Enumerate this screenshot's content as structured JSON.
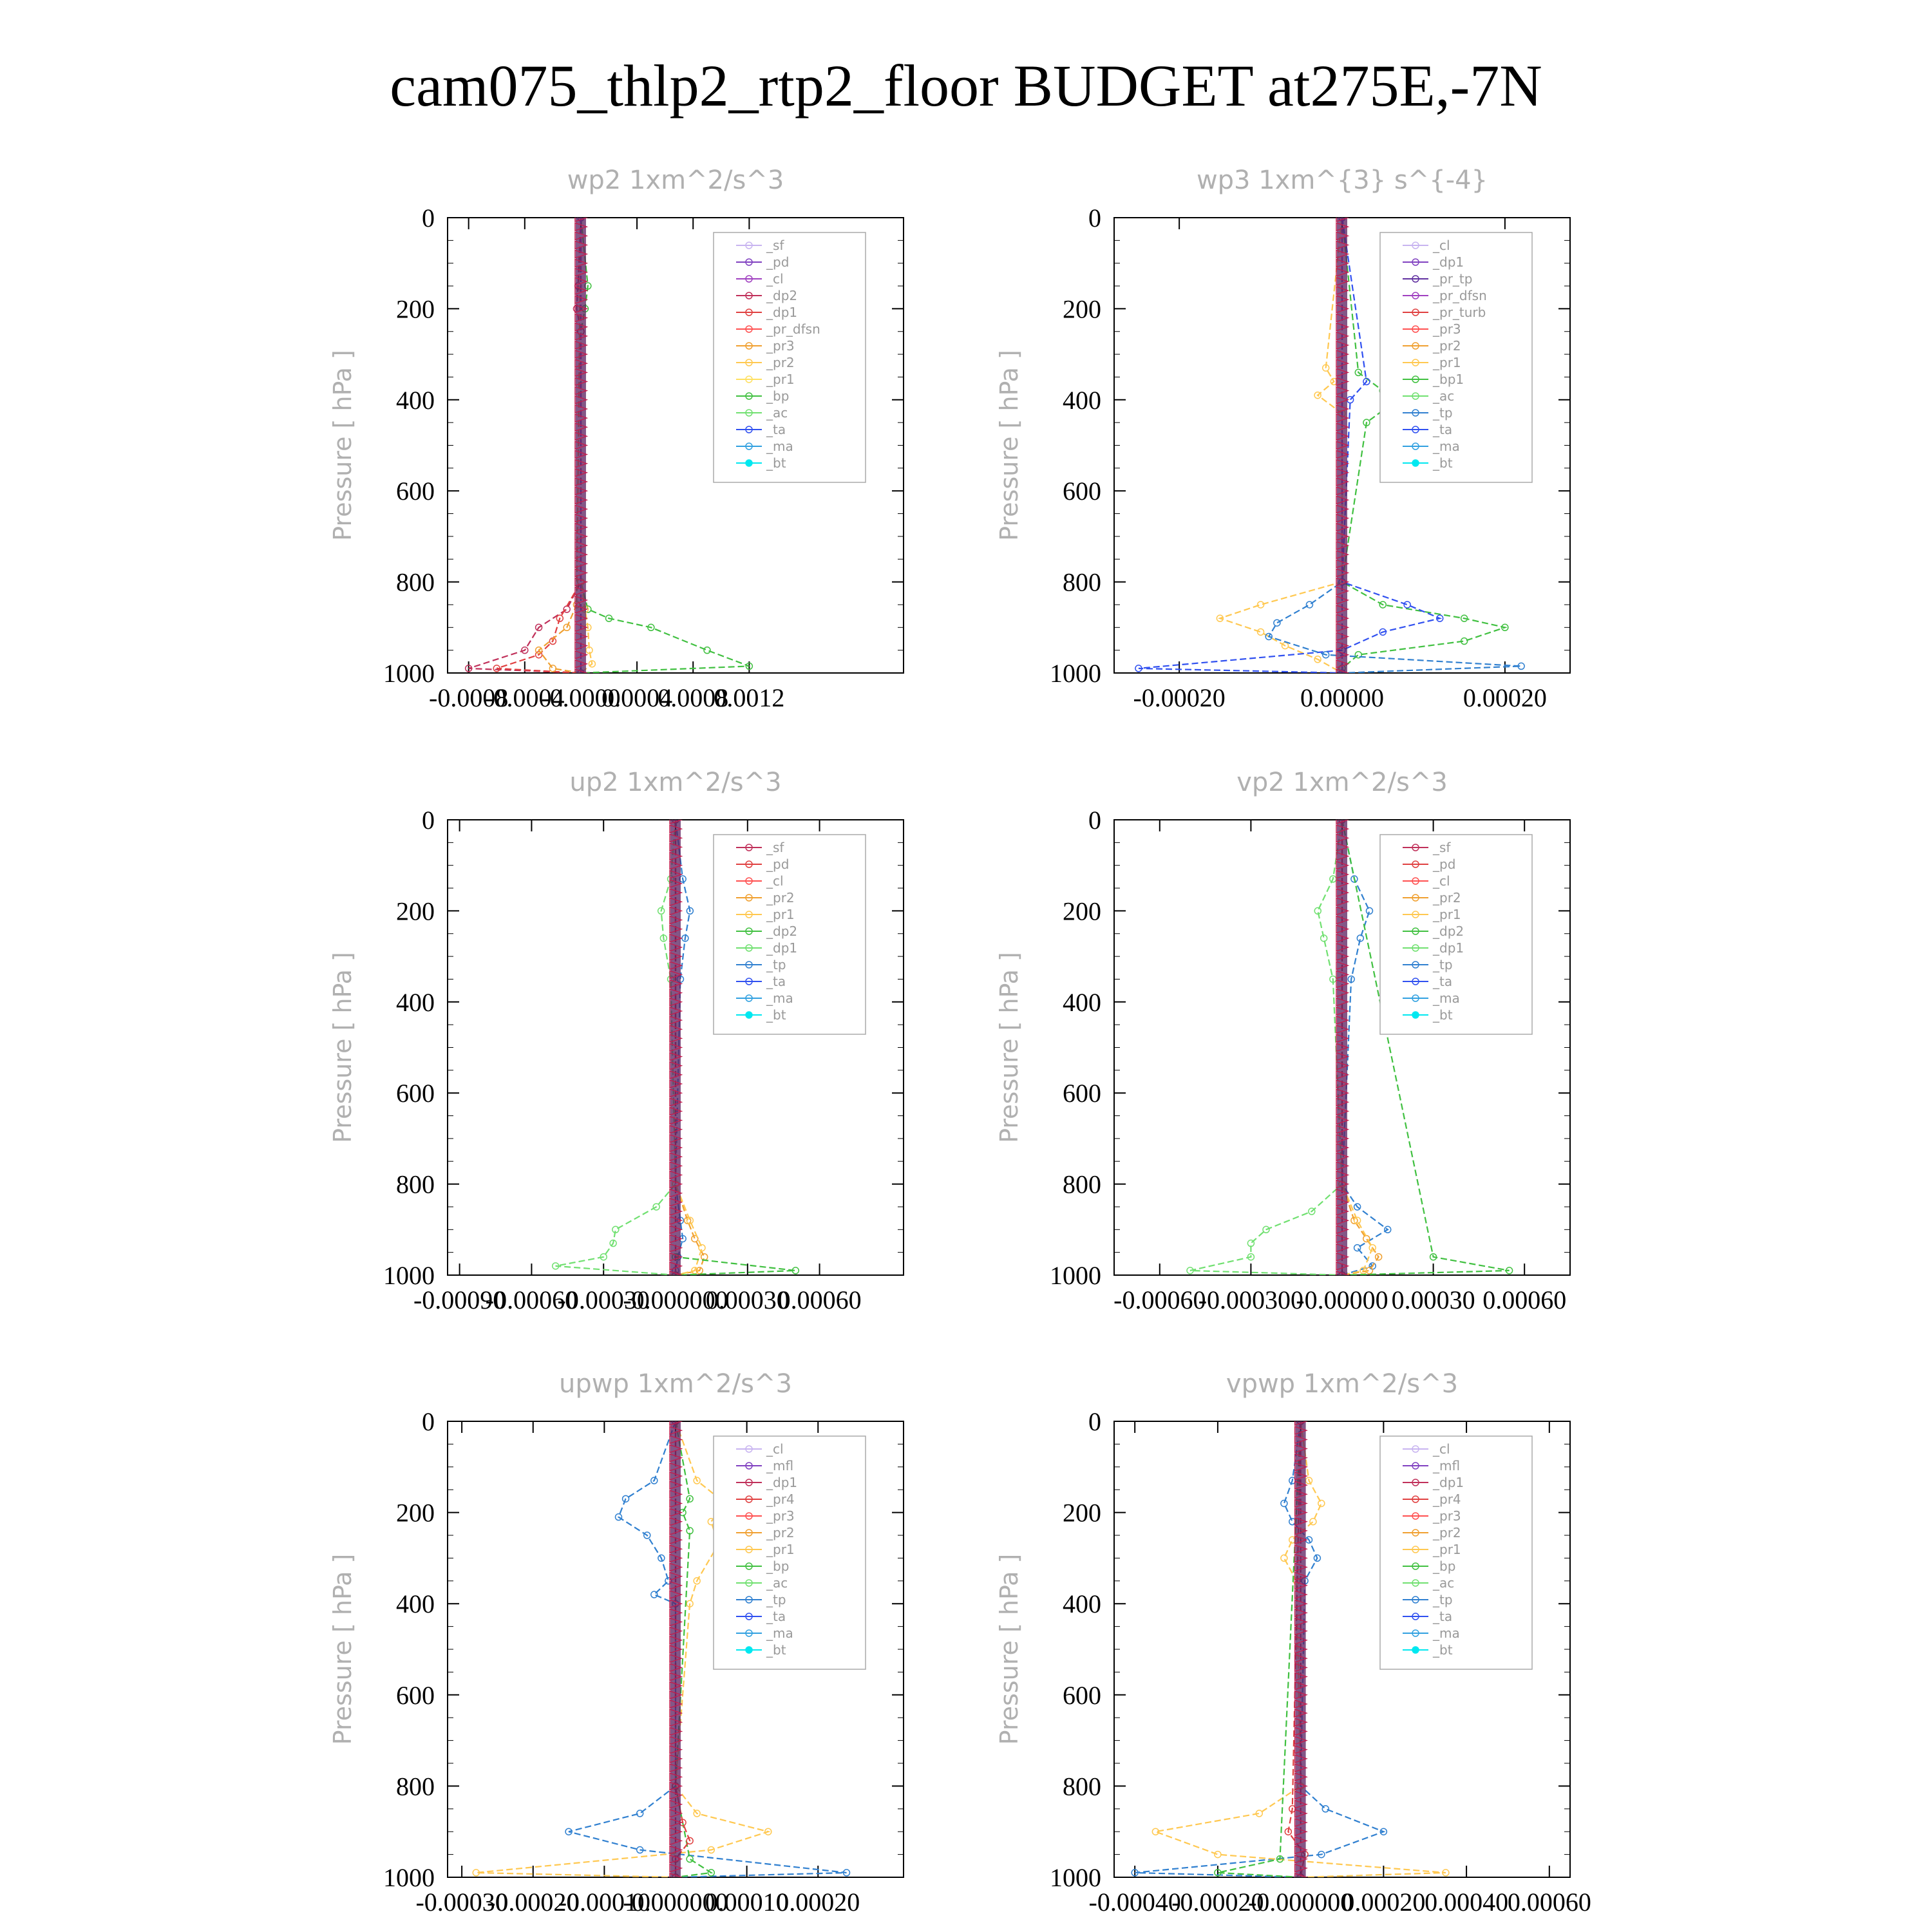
{
  "title": "cam075_thlp2_rtp2_floor  BUDGET at275E,-7N",
  "chart_data": [
    {
      "type": "line",
      "title": "wp2   1xm^2/s^3",
      "ylabel": "Pressure  [ hPa ]",
      "yticks": [
        "0",
        "200",
        "400",
        "600",
        "800",
        "1000"
      ],
      "xtick_labels": [
        "-0.0008",
        "-0.0004",
        "-0.0000",
        "0.0004",
        "0.0008",
        "0.0012"
      ],
      "xtick_values": [
        -0.0008,
        -0.0004,
        0,
        0.0004,
        0.0008,
        0.0012
      ],
      "xlim": [
        -0.00095,
        0.0023
      ],
      "ylim": [
        1000,
        0
      ],
      "legend": [
        "_sf",
        "_pd",
        "_cl",
        "_dp2",
        "_dp1",
        "_pr_dfsn",
        "_pr3",
        "_pr2",
        "_pr1",
        "_bp",
        "_ac",
        "_ta",
        "_ma",
        "_bt"
      ],
      "legend_colors": [
        "#c8b4f0",
        "#8040c0",
        "#a040c0",
        "#c0305a",
        "#e04040",
        "#ff5050",
        "#f0a030",
        "#ffc850",
        "#ffe060",
        "#40c040",
        "#70e070",
        "#3050f0",
        "#30a0e0",
        "#00e8f0"
      ],
      "series": [
        {
          "name": "_pr1",
          "color": "#40c040",
          "y": [
            0,
            150,
            200,
            250,
            800,
            860,
            880,
            900,
            950,
            985,
            1000
          ],
          "x": [
            0,
            5e-05,
            3e-05,
            0,
            0,
            5e-05,
            0.0002,
            0.0005,
            0.0009,
            0.0012,
            0
          ]
        },
        {
          "name": "_dp2",
          "color": "#c0305a",
          "y": [
            0,
            150,
            200,
            250,
            800,
            860,
            900,
            950,
            990,
            1000
          ],
          "x": [
            0,
            -2e-05,
            -3e-05,
            0,
            0,
            -0.0001,
            -0.0003,
            -0.0004,
            -0.0008,
            0
          ]
        },
        {
          "name": "_dp1",
          "color": "#e04040",
          "y": [
            0,
            800,
            880,
            930,
            960,
            990,
            1000
          ],
          "x": [
            0,
            0,
            -0.00015,
            -0.0002,
            -0.0003,
            -0.0006,
            0
          ]
        },
        {
          "name": "_pr2",
          "color": "#ffc850",
          "y": [
            0,
            800,
            860,
            900,
            950,
            980,
            1000
          ],
          "x": [
            0,
            0,
            3e-05,
            5e-05,
            6e-05,
            8e-05,
            0
          ]
        },
        {
          "name": "_pr3",
          "color": "#f0a030",
          "y": [
            0,
            850,
            900,
            950,
            990,
            1000
          ],
          "x": [
            0,
            -3e-05,
            -0.0001,
            -0.0003,
            -0.0002,
            0
          ]
        },
        {
          "name": "_pd",
          "color": "#8040c0",
          "y": [
            0,
            1000
          ],
          "x": [
            0,
            0
          ]
        }
      ]
    },
    {
      "type": "line",
      "title": "wp3   1xm^{3} s^{-4}",
      "ylabel": "Pressure  [ hPa ]",
      "yticks": [
        "0",
        "200",
        "400",
        "600",
        "800",
        "1000"
      ],
      "xtick_labels": [
        "-0.00020",
        "0.00000",
        "0.00020"
      ],
      "xtick_values": [
        -0.0002,
        0,
        0.0002
      ],
      "xlim": [
        -0.00028,
        0.00028
      ],
      "ylim": [
        1000,
        0
      ],
      "legend": [
        "_cl",
        "_dp1",
        "_pr_tp",
        "_pr_dfsn",
        "_pr_turb",
        "_pr3",
        "_pr2",
        "_pr1",
        "_bp1",
        "_ac",
        "_tp",
        "_ta",
        "_ma",
        "_bt"
      ],
      "legend_colors": [
        "#c8b4f0",
        "#8040c0",
        "#6030a0",
        "#a040c0",
        "#e04040",
        "#ff5050",
        "#f0a030",
        "#ffc850",
        "#40c040",
        "#70e070",
        "#3080d0",
        "#3050f0",
        "#30a0e0",
        "#00e8f0"
      ],
      "series": [
        {
          "name": "_bp1",
          "color": "#40c040",
          "y": [
            0,
            340,
            380,
            410,
            450,
            800,
            850,
            880,
            900,
            930,
            960,
            990,
            1000
          ],
          "x": [
            0,
            2e-05,
            5e-05,
            6e-05,
            3e-05,
            0,
            5e-05,
            0.00015,
            0.0002,
            0.00015,
            2e-05,
            0,
            0
          ]
        },
        {
          "name": "_pr1",
          "color": "#ffc850",
          "y": [
            0,
            330,
            360,
            390,
            430,
            800,
            850,
            880,
            910,
            940,
            970,
            1000
          ],
          "x": [
            0,
            -2e-05,
            -1e-05,
            -3e-05,
            0,
            0,
            -0.0001,
            -0.00015,
            -0.0001,
            -7e-05,
            -3e-05,
            0
          ]
        },
        {
          "name": "_ta",
          "color": "#3050f0",
          "y": [
            0,
            360,
            400,
            800,
            850,
            880,
            910,
            950,
            990,
            1000
          ],
          "x": [
            0,
            3e-05,
            1e-05,
            0,
            8e-05,
            0.00012,
            5e-05,
            0,
            -0.00025,
            0
          ]
        },
        {
          "name": "_tp",
          "color": "#3080d0",
          "y": [
            0,
            800,
            850,
            890,
            920,
            960,
            985,
            1000
          ],
          "x": [
            0,
            0,
            -4e-05,
            -8e-05,
            -9e-05,
            -2e-05,
            0.00022,
            0
          ]
        },
        {
          "name": "_dp1",
          "color": "#8040c0",
          "y": [
            0,
            1000
          ],
          "x": [
            0,
            0
          ]
        }
      ]
    },
    {
      "type": "line",
      "title": "up2   1xm^2/s^3",
      "ylabel": "Pressure  [ hPa ]",
      "yticks": [
        "0",
        "200",
        "400",
        "600",
        "800",
        "1000"
      ],
      "xtick_labels": [
        "-0.00090",
        "-0.00060",
        "-0.00030",
        "-0.000000",
        "0.00030",
        "0.00060"
      ],
      "xtick_values": [
        -0.0009,
        -0.0006,
        -0.0003,
        0,
        0.0003,
        0.0006
      ],
      "xlim": [
        -0.00095,
        0.00095
      ],
      "ylim": [
        1000,
        0
      ],
      "legend": [
        "_sf",
        "_pd",
        "_cl",
        "_pr2",
        "_pr1",
        "_dp2",
        "_dp1",
        "_tp",
        "_ta",
        "_ma",
        "_bt"
      ],
      "legend_colors": [
        "#c0305a",
        "#e04040",
        "#ff5050",
        "#f0a030",
        "#ffc850",
        "#40c040",
        "#70e070",
        "#3080d0",
        "#3050f0",
        "#30a0e0",
        "#00e8f0"
      ],
      "series": [
        {
          "name": "_dp1",
          "color": "#70e070",
          "y": [
            0,
            130,
            200,
            260,
            350,
            800,
            850,
            900,
            930,
            960,
            980,
            1000
          ],
          "x": [
            0,
            -2e-05,
            -6e-05,
            -5e-05,
            -2e-05,
            0,
            -8e-05,
            -0.00025,
            -0.00026,
            -0.0003,
            -0.0005,
            0
          ]
        },
        {
          "name": "_tp",
          "color": "#3080d0",
          "y": [
            0,
            130,
            200,
            260,
            350,
            800,
            880,
            920,
            960,
            990,
            1000
          ],
          "x": [
            0,
            3e-05,
            6e-05,
            4e-05,
            2e-05,
            0,
            2e-05,
            3e-05,
            1e-05,
            0,
            0
          ]
        },
        {
          "name": "_pr2",
          "color": "#f0a030",
          "y": [
            0,
            800,
            880,
            920,
            960,
            990,
            1000
          ],
          "x": [
            0,
            0,
            5e-05,
            8e-05,
            0.00012,
            0.0001,
            0
          ]
        },
        {
          "name": "_pr1",
          "color": "#ffc850",
          "y": [
            0,
            800,
            880,
            940,
            990,
            1000
          ],
          "x": [
            0,
            0,
            6e-05,
            0.00011,
            8e-05,
            0
          ]
        },
        {
          "name": "_dp2",
          "color": "#40c040",
          "y": [
            0,
            960,
            990,
            1000
          ],
          "x": [
            0,
            0,
            0.0005,
            0
          ]
        },
        {
          "name": "_sf",
          "color": "#c0305a",
          "y": [
            0,
            1000
          ],
          "x": [
            0,
            0
          ]
        }
      ]
    },
    {
      "type": "line",
      "title": "vp2   1xm^2/s^3",
      "ylabel": "Pressure  [ hPa ]",
      "yticks": [
        "0",
        "200",
        "400",
        "600",
        "800",
        "1000"
      ],
      "xtick_labels": [
        "-0.00060",
        "-0.000300",
        "-0.00000",
        "0.00030",
        "0.00060"
      ],
      "xtick_values": [
        -0.0006,
        -0.0003,
        0,
        0.0003,
        0.0006
      ],
      "xlim": [
        -0.00075,
        0.00075
      ],
      "ylim": [
        1000,
        0
      ],
      "legend": [
        "_sf",
        "_pd",
        "_cl",
        "_pr2",
        "_pr1",
        "_dp2",
        "_dp1",
        "_tp",
        "_ta",
        "_ma",
        "_bt"
      ],
      "legend_colors": [
        "#c0305a",
        "#e04040",
        "#ff5050",
        "#f0a030",
        "#ffc850",
        "#40c040",
        "#70e070",
        "#3080d0",
        "#3050f0",
        "#30a0e0",
        "#00e8f0"
      ],
      "series": [
        {
          "name": "_dp1",
          "color": "#70e070",
          "y": [
            0,
            130,
            200,
            260,
            350,
            800,
            860,
            900,
            930,
            960,
            990,
            1000
          ],
          "x": [
            0,
            -3e-05,
            -8e-05,
            -6e-05,
            -3e-05,
            0,
            -0.0001,
            -0.00025,
            -0.0003,
            -0.0003,
            -0.0005,
            0
          ]
        },
        {
          "name": "_tp",
          "color": "#3080d0",
          "y": [
            0,
            130,
            200,
            260,
            350,
            800,
            850,
            900,
            940,
            980,
            1000
          ],
          "x": [
            0,
            4e-05,
            9e-05,
            6e-05,
            3e-05,
            0,
            5e-05,
            0.00015,
            5e-05,
            0.0001,
            0
          ]
        },
        {
          "name": "_pr2",
          "color": "#f0a030",
          "y": [
            0,
            800,
            880,
            920,
            960,
            990,
            1000
          ],
          "x": [
            0,
            0,
            4e-05,
            8e-05,
            0.00012,
            9e-05,
            0
          ]
        },
        {
          "name": "_pr1",
          "color": "#ffc850",
          "y": [
            0,
            800,
            880,
            940,
            990,
            1000
          ],
          "x": [
            0,
            0,
            5e-05,
            0.0001,
            7e-05,
            0
          ]
        },
        {
          "name": "_dp2",
          "color": "#40c040",
          "y": [
            0,
            960,
            990,
            1000
          ],
          "x": [
            0,
            0.0003,
            0.00055,
            0
          ]
        },
        {
          "name": "_sf",
          "color": "#c0305a",
          "y": [
            0,
            1000
          ],
          "x": [
            0,
            0
          ]
        }
      ]
    },
    {
      "type": "line",
      "title": "upwp   1xm^2/s^3",
      "ylabel": "Pressure  [ hPa ]",
      "yticks": [
        "0",
        "200",
        "400",
        "600",
        "800",
        "1000"
      ],
      "xtick_labels": [
        "-0.00030",
        "-0.00020",
        "-0.00010",
        "-0.000000",
        "0.00010",
        "0.00020"
      ],
      "xtick_values": [
        -0.0003,
        -0.0002,
        -0.0001,
        0,
        0.0001,
        0.0002
      ],
      "xlim": [
        -0.00032,
        0.00032
      ],
      "ylim": [
        1000,
        0
      ],
      "legend": [
        "_cl",
        "_mfl",
        "_dp1",
        "_pr4",
        "_pr3",
        "_pr2",
        "_pr1",
        "_bp",
        "_ac",
        "_tp",
        "_ta",
        "_ma",
        "_bt"
      ],
      "legend_colors": [
        "#c8b4f0",
        "#8040c0",
        "#c0305a",
        "#e04040",
        "#ff5050",
        "#f0a030",
        "#ffc850",
        "#40c040",
        "#70e070",
        "#3080d0",
        "#3050f0",
        "#30a0e0",
        "#00e8f0"
      ],
      "series": [
        {
          "name": "_tp",
          "color": "#3080d0",
          "y": [
            0,
            130,
            170,
            210,
            250,
            300,
            350,
            380,
            400,
            800,
            860,
            900,
            940,
            990,
            1000
          ],
          "x": [
            0,
            -3e-05,
            -7e-05,
            -8e-05,
            -4e-05,
            -2e-05,
            -1e-05,
            -3e-05,
            0,
            0,
            -5e-05,
            -0.00015,
            -5e-05,
            0.00024,
            0
          ]
        },
        {
          "name": "_pr1",
          "color": "#ffc850",
          "y": [
            0,
            130,
            180,
            220,
            270,
            350,
            400,
            800,
            860,
            900,
            940,
            990,
            1000
          ],
          "x": [
            0,
            3e-05,
            7e-05,
            5e-05,
            6e-05,
            3e-05,
            2e-05,
            0,
            3e-05,
            0.00013,
            5e-05,
            -0.00028,
            0
          ]
        },
        {
          "name": "_bp",
          "color": "#40c040",
          "y": [
            0,
            170,
            200,
            240,
            800,
            960,
            990,
            1000
          ],
          "x": [
            0,
            2e-05,
            1e-05,
            2e-05,
            0,
            2e-05,
            5e-05,
            0
          ]
        },
        {
          "name": "_pr4",
          "color": "#e04040",
          "y": [
            0,
            800,
            880,
            920,
            960,
            1000
          ],
          "x": [
            0,
            0,
            1e-05,
            2e-05,
            0,
            0
          ]
        },
        {
          "name": "_dp1",
          "color": "#c0305a",
          "y": [
            0,
            1000
          ],
          "x": [
            0,
            0
          ]
        }
      ]
    },
    {
      "type": "line",
      "title": "vpwp   1xm^2/s^3",
      "ylabel": "Pressure  [ hPa ]",
      "yticks": [
        "0",
        "200",
        "400",
        "600",
        "800",
        "1000"
      ],
      "xtick_labels": [
        "-0.00040",
        "-0.00020",
        "-0.000000",
        "0.00020",
        "0.00040",
        "0.00060"
      ],
      "xtick_values": [
        -0.0004,
        -0.0002,
        0,
        0.0002,
        0.0004,
        0.0006
      ],
      "xlim": [
        -0.00045,
        0.00065
      ],
      "ylim": [
        1000,
        0
      ],
      "legend": [
        "_cl",
        "_mfl",
        "_dp1",
        "_pr4",
        "_pr3",
        "_pr2",
        "_pr1",
        "_bp",
        "_ac",
        "_tp",
        "_ta",
        "_ma",
        "_bt"
      ],
      "legend_colors": [
        "#c8b4f0",
        "#8040c0",
        "#c0305a",
        "#e04040",
        "#ff5050",
        "#f0a030",
        "#ffc850",
        "#40c040",
        "#70e070",
        "#3080d0",
        "#3050f0",
        "#30a0e0",
        "#00e8f0"
      ],
      "series": [
        {
          "name": "_tp",
          "color": "#3080d0",
          "y": [
            0,
            130,
            180,
            220,
            260,
            300,
            350,
            800,
            850,
            900,
            950,
            990,
            1000
          ],
          "x": [
            0,
            -2e-05,
            -4e-05,
            -2e-05,
            2e-05,
            4e-05,
            1e-05,
            0,
            6e-05,
            0.0002,
            5e-05,
            -0.0004,
            0
          ]
        },
        {
          "name": "_pr1",
          "color": "#ffc850",
          "y": [
            0,
            130,
            180,
            220,
            260,
            300,
            350,
            800,
            860,
            900,
            950,
            990,
            1000
          ],
          "x": [
            0,
            2e-05,
            5e-05,
            3e-05,
            -2e-05,
            -4e-05,
            -1e-05,
            0,
            -0.0001,
            -0.00035,
            -0.0002,
            0.00035,
            0
          ]
        },
        {
          "name": "_bp",
          "color": "#40c040",
          "y": [
            0,
            960,
            990,
            1000
          ],
          "x": [
            0,
            -5e-05,
            -0.0002,
            0
          ]
        },
        {
          "name": "_pr4",
          "color": "#e04040",
          "y": [
            0,
            850,
            900,
            950,
            1000
          ],
          "x": [
            0,
            -2e-05,
            -3e-05,
            1e-05,
            0
          ]
        },
        {
          "name": "_dp1",
          "color": "#c0305a",
          "y": [
            0,
            1000
          ],
          "x": [
            0,
            0
          ]
        }
      ]
    }
  ]
}
